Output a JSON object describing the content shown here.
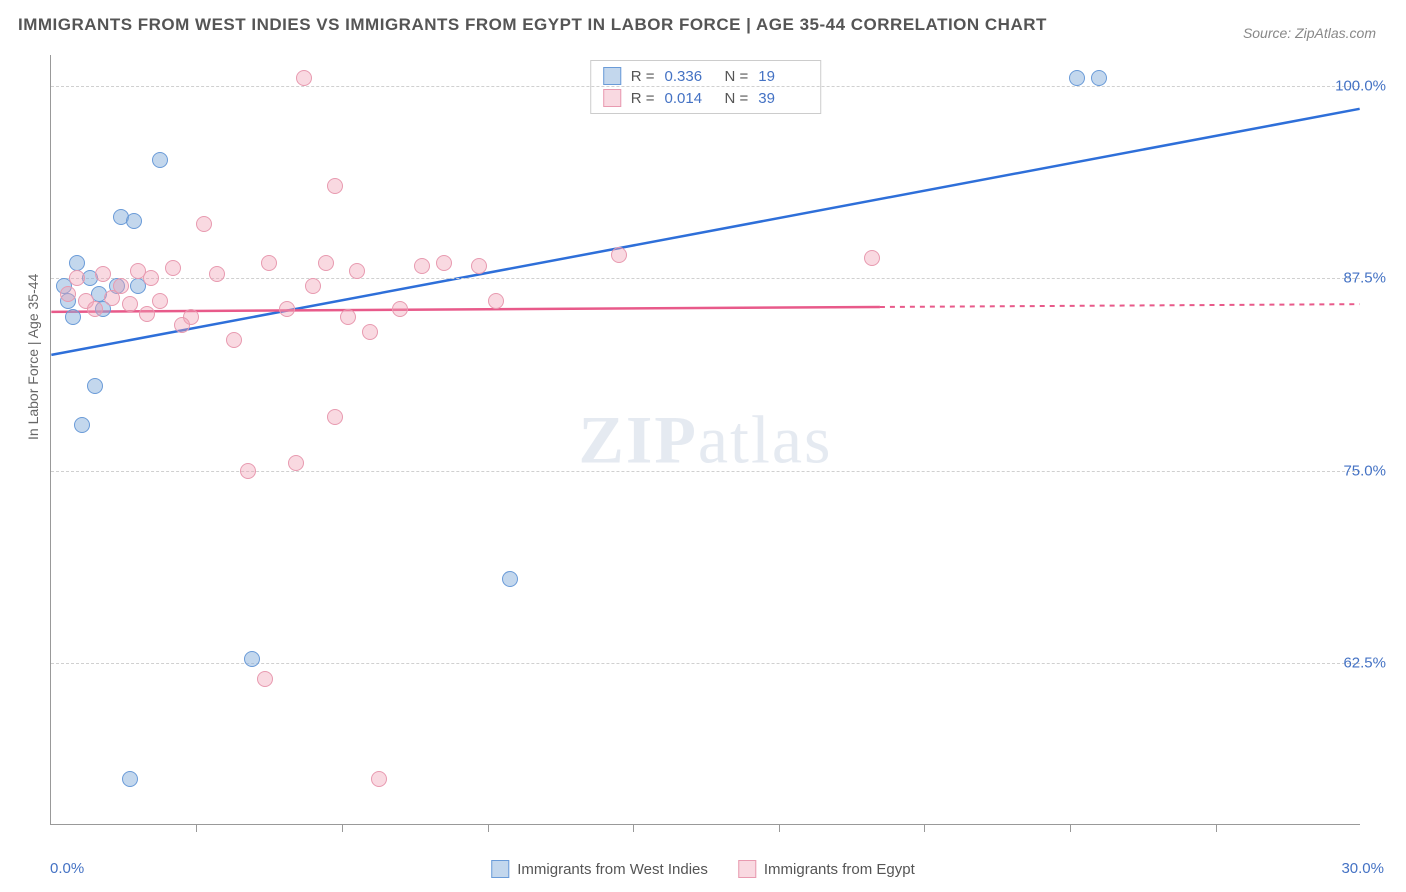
{
  "title": "IMMIGRANTS FROM WEST INDIES VS IMMIGRANTS FROM EGYPT IN LABOR FORCE | AGE 35-44 CORRELATION CHART",
  "source": "Source: ZipAtlas.com",
  "watermark_a": "ZIP",
  "watermark_b": "atlas",
  "ylabel": "In Labor Force | Age 35-44",
  "xmin": 0.0,
  "xmax": 30.0,
  "ymin": 52.0,
  "ymax": 102.0,
  "yticks": [
    {
      "v": 62.5,
      "label": "62.5%"
    },
    {
      "v": 75.0,
      "label": "75.0%"
    },
    {
      "v": 87.5,
      "label": "87.5%"
    },
    {
      "v": 100.0,
      "label": "100.0%"
    }
  ],
  "xticks_lines": [
    3.33,
    6.67,
    10.0,
    13.33,
    16.67,
    20.0,
    23.33,
    26.67
  ],
  "xlabel_min": "0.0%",
  "xlabel_max": "30.0%",
  "series": [
    {
      "name": "Immigrants from West Indies",
      "class": "blue",
      "R": "0.336",
      "N": "19",
      "line_color": "#2e6fd9",
      "line": {
        "x1": 0.0,
        "y1": 82.5,
        "x2": 30.0,
        "y2": 98.5,
        "dash_after_x": null
      },
      "points": [
        {
          "x": 0.3,
          "y": 87.0
        },
        {
          "x": 0.4,
          "y": 86.0
        },
        {
          "x": 0.6,
          "y": 88.5
        },
        {
          "x": 0.7,
          "y": 78.0
        },
        {
          "x": 0.9,
          "y": 87.5
        },
        {
          "x": 1.1,
          "y": 86.5
        },
        {
          "x": 1.5,
          "y": 87.0
        },
        {
          "x": 1.6,
          "y": 91.5
        },
        {
          "x": 1.9,
          "y": 91.2
        },
        {
          "x": 2.0,
          "y": 87.0
        },
        {
          "x": 2.5,
          "y": 95.2
        },
        {
          "x": 1.0,
          "y": 80.5
        },
        {
          "x": 4.6,
          "y": 62.8
        },
        {
          "x": 1.8,
          "y": 55.0
        },
        {
          "x": 10.5,
          "y": 68.0
        },
        {
          "x": 23.5,
          "y": 100.5
        },
        {
          "x": 24.0,
          "y": 100.5
        },
        {
          "x": 1.2,
          "y": 85.5
        },
        {
          "x": 0.5,
          "y": 85.0
        }
      ]
    },
    {
      "name": "Immigrants from Egypt",
      "class": "pink",
      "R": "0.014",
      "N": "39",
      "line_color": "#e85a8a",
      "line": {
        "x1": 0.0,
        "y1": 85.3,
        "x2": 30.0,
        "y2": 85.8,
        "dash_after_x": 19.0
      },
      "points": [
        {
          "x": 0.4,
          "y": 86.5
        },
        {
          "x": 0.6,
          "y": 87.5
        },
        {
          "x": 0.8,
          "y": 86.0
        },
        {
          "x": 1.0,
          "y": 85.5
        },
        {
          "x": 1.2,
          "y": 87.8
        },
        {
          "x": 1.4,
          "y": 86.2
        },
        {
          "x": 1.6,
          "y": 87.0
        },
        {
          "x": 1.8,
          "y": 85.8
        },
        {
          "x": 2.0,
          "y": 88.0
        },
        {
          "x": 2.3,
          "y": 87.5
        },
        {
          "x": 2.5,
          "y": 86.0
        },
        {
          "x": 2.8,
          "y": 88.2
        },
        {
          "x": 3.2,
          "y": 85.0
        },
        {
          "x": 3.5,
          "y": 91.0
        },
        {
          "x": 3.8,
          "y": 87.8
        },
        {
          "x": 4.2,
          "y": 83.5
        },
        {
          "x": 4.5,
          "y": 75.0
        },
        {
          "x": 4.9,
          "y": 61.5
        },
        {
          "x": 5.0,
          "y": 88.5
        },
        {
          "x": 5.4,
          "y": 85.5
        },
        {
          "x": 5.6,
          "y": 75.5
        },
        {
          "x": 5.8,
          "y": 100.5
        },
        {
          "x": 6.0,
          "y": 87.0
        },
        {
          "x": 6.3,
          "y": 88.5
        },
        {
          "x": 6.5,
          "y": 93.5
        },
        {
          "x": 6.5,
          "y": 78.5
        },
        {
          "x": 6.8,
          "y": 85.0
        },
        {
          "x": 7.0,
          "y": 88.0
        },
        {
          "x": 7.3,
          "y": 84.0
        },
        {
          "x": 7.5,
          "y": 55.0
        },
        {
          "x": 8.0,
          "y": 85.5
        },
        {
          "x": 8.5,
          "y": 88.3
        },
        {
          "x": 9.0,
          "y": 88.5
        },
        {
          "x": 9.8,
          "y": 88.3
        },
        {
          "x": 10.2,
          "y": 86.0
        },
        {
          "x": 13.0,
          "y": 89.0
        },
        {
          "x": 18.8,
          "y": 88.8
        },
        {
          "x": 3.0,
          "y": 84.5
        },
        {
          "x": 2.2,
          "y": 85.2
        }
      ]
    }
  ]
}
